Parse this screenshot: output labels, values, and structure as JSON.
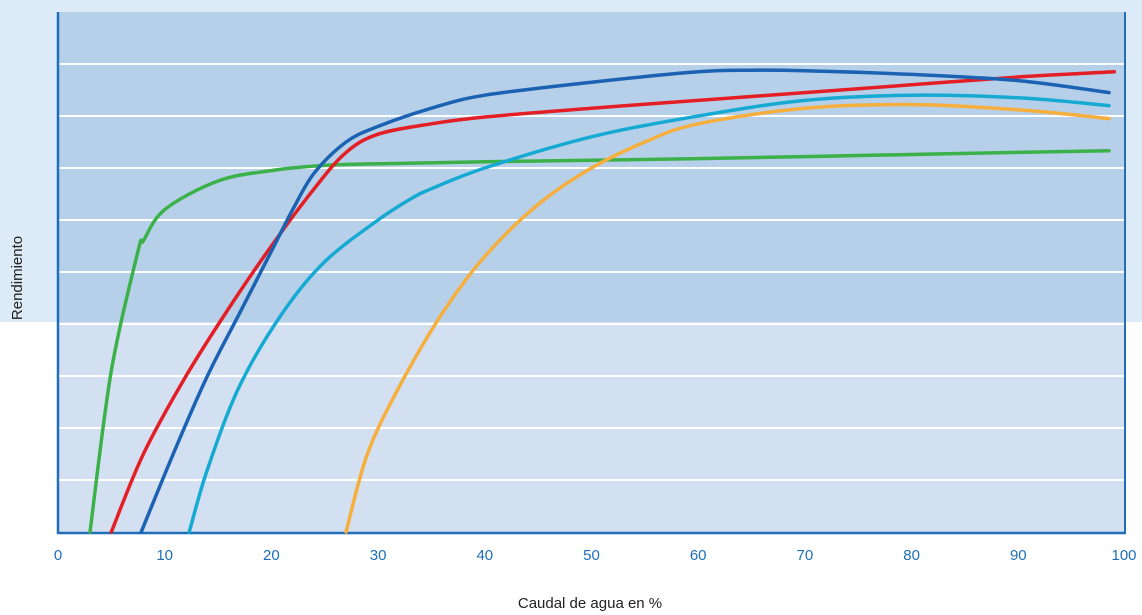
{
  "chart_data": {
    "type": "line",
    "title": "",
    "xlabel": "Caudal de agua en %",
    "ylabel": "Rendimiento",
    "xlim": [
      0,
      100
    ],
    "ylim": [
      0,
      10
    ],
    "x_ticks": [
      "0",
      "10",
      "20",
      "30",
      "40",
      "50",
      "60",
      "70",
      "80",
      "90",
      "100"
    ],
    "y_tick_labels_shown": false,
    "grid": "horizontal",
    "legend": "none",
    "colors": {
      "upper_band": "#b6d0ea",
      "lower_band": "#d3e0f1",
      "outer_background": "#dcebf7",
      "axis": "#1e6fb8",
      "gridline": "#ffffff",
      "tick_text": "#1e6fb8"
    },
    "series": [
      {
        "color": "#3cb14a",
        "points": [
          [
            3,
            0
          ],
          [
            5,
            3.1
          ],
          [
            7.5,
            5.4
          ],
          [
            8,
            5.6
          ],
          [
            10,
            6.2
          ],
          [
            15,
            6.75
          ],
          [
            20,
            6.95
          ],
          [
            25,
            7.05
          ],
          [
            30,
            7.08
          ],
          [
            40,
            7.12
          ],
          [
            50,
            7.15
          ],
          [
            60,
            7.18
          ],
          [
            70,
            7.22
          ],
          [
            80,
            7.26
          ],
          [
            90,
            7.3
          ],
          [
            98.5,
            7.33
          ]
        ]
      },
      {
        "color": "#e31e25",
        "points": [
          [
            5,
            0
          ],
          [
            8,
            1.5
          ],
          [
            12,
            3.0
          ],
          [
            16,
            4.3
          ],
          [
            20,
            5.5
          ],
          [
            24,
            6.6
          ],
          [
            27,
            7.3
          ],
          [
            30,
            7.65
          ],
          [
            35,
            7.85
          ],
          [
            40,
            7.98
          ],
          [
            50,
            8.15
          ],
          [
            60,
            8.3
          ],
          [
            70,
            8.45
          ],
          [
            80,
            8.6
          ],
          [
            90,
            8.75
          ],
          [
            99,
            8.85
          ]
        ]
      },
      {
        "color": "#1b63b2",
        "points": [
          [
            7.8,
            0
          ],
          [
            11,
            1.6
          ],
          [
            14,
            3.0
          ],
          [
            17,
            4.2
          ],
          [
            20,
            5.4
          ],
          [
            22,
            6.2
          ],
          [
            24,
            6.9
          ],
          [
            27,
            7.5
          ],
          [
            30,
            7.8
          ],
          [
            35,
            8.15
          ],
          [
            40,
            8.4
          ],
          [
            50,
            8.65
          ],
          [
            60,
            8.85
          ],
          [
            65,
            8.88
          ],
          [
            70,
            8.87
          ],
          [
            80,
            8.8
          ],
          [
            90,
            8.68
          ],
          [
            98.5,
            8.45
          ]
        ]
      },
      {
        "color": "#16aad2",
        "points": [
          [
            12.3,
            0
          ],
          [
            14,
            1.2
          ],
          [
            17,
            2.8
          ],
          [
            21,
            4.2
          ],
          [
            25,
            5.2
          ],
          [
            30,
            6.0
          ],
          [
            33,
            6.4
          ],
          [
            35,
            6.6
          ],
          [
            40,
            7.0
          ],
          [
            50,
            7.6
          ],
          [
            60,
            8.0
          ],
          [
            70,
            8.3
          ],
          [
            80,
            8.4
          ],
          [
            90,
            8.35
          ],
          [
            98.5,
            8.2
          ]
        ]
      },
      {
        "color": "#f6ae3c",
        "points": [
          [
            27,
            0
          ],
          [
            29,
            1.5
          ],
          [
            32,
            2.8
          ],
          [
            36,
            4.2
          ],
          [
            40,
            5.3
          ],
          [
            45,
            6.3
          ],
          [
            50,
            7.0
          ],
          [
            55,
            7.5
          ],
          [
            60,
            7.85
          ],
          [
            70,
            8.15
          ],
          [
            80,
            8.22
          ],
          [
            90,
            8.12
          ],
          [
            98.5,
            7.95
          ]
        ]
      }
    ]
  }
}
